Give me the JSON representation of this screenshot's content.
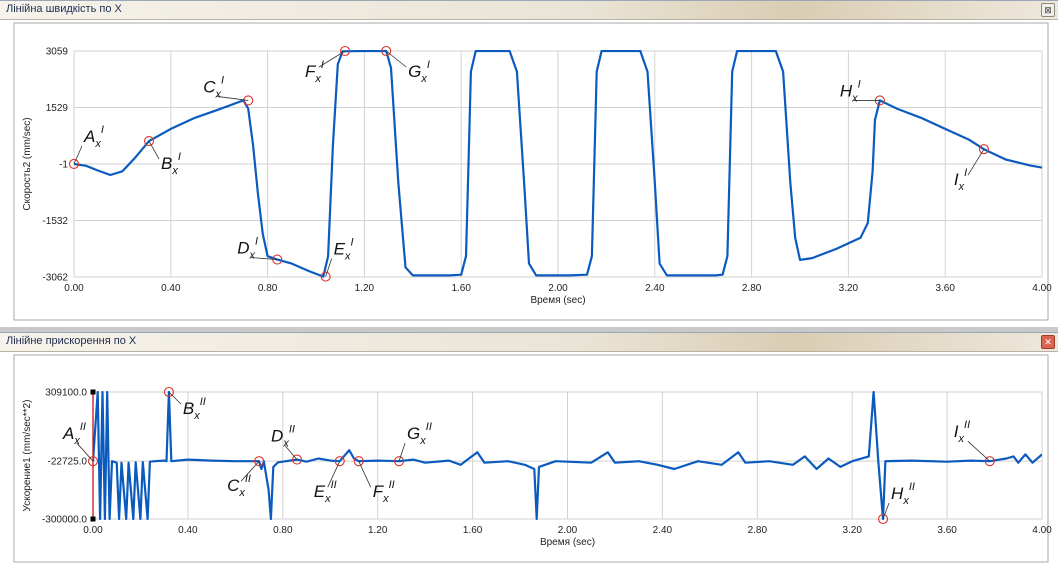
{
  "colors": {
    "series": "#0b5bbf",
    "marker": "#d9342b",
    "grid": "#d2d2d2",
    "axis_line": "#c00000",
    "title_text": "#1d2b4d"
  },
  "window_top": {
    "title": "Лінійна швидкість по X",
    "button_icon": "maximize-icon",
    "button_glyph": "⊠"
  },
  "window_bottom": {
    "title": "Лінійне прискорення по X",
    "button_icon": "close-icon",
    "button_glyph": "✕"
  },
  "chart_data": [
    {
      "type": "line",
      "title": "Лінійна швидкість по X",
      "xlabel": "Время (sec)",
      "ylabel": "Скорость2 (mm/sec)",
      "xlim": [
        0,
        4
      ],
      "ylim": [
        -3062,
        3059
      ],
      "xticks": [
        "0.00",
        "0.40",
        "0.80",
        "1.20",
        "1.60",
        "2.00",
        "2.40",
        "2.80",
        "3.20",
        "3.60",
        "4.00"
      ],
      "yticks": [
        {
          "v": 3059,
          "label": "3059"
        },
        {
          "v": 1529,
          "label": "1529"
        },
        {
          "v": -1,
          "label": "-1"
        },
        {
          "v": -1532,
          "label": "-1532"
        },
        {
          "v": -3062,
          "label": "-3062"
        }
      ],
      "grid": true,
      "series": [
        {
          "points": [
            [
              0.0,
              -1
            ],
            [
              0.05,
              -50
            ],
            [
              0.1,
              -180
            ],
            [
              0.15,
              -300
            ],
            [
              0.2,
              -200
            ],
            [
              0.25,
              150
            ],
            [
              0.31,
              620
            ],
            [
              0.4,
              950
            ],
            [
              0.5,
              1250
            ],
            [
              0.6,
              1480
            ],
            [
              0.7,
              1720
            ],
            [
              0.72,
              1500
            ],
            [
              0.74,
              500
            ],
            [
              0.76,
              -800
            ],
            [
              0.78,
              -1900
            ],
            [
              0.8,
              -2500
            ],
            [
              0.84,
              -2590
            ],
            [
              0.9,
              -2700
            ],
            [
              0.97,
              -2900
            ],
            [
              1.03,
              -3050
            ],
            [
              1.05,
              -2500
            ],
            [
              1.07,
              500
            ],
            [
              1.09,
              2700
            ],
            [
              1.11,
              3050
            ],
            [
              1.2,
              3059
            ],
            [
              1.29,
              3059
            ],
            [
              1.31,
              2600
            ],
            [
              1.34,
              -500
            ],
            [
              1.37,
              -2800
            ],
            [
              1.4,
              -3020
            ],
            [
              1.55,
              -3020
            ],
            [
              1.6,
              -3000
            ],
            [
              1.62,
              -2500
            ],
            [
              1.63,
              0
            ],
            [
              1.64,
              2500
            ],
            [
              1.66,
              3059
            ],
            [
              1.8,
              3059
            ],
            [
              1.83,
              2500
            ],
            [
              1.86,
              -500
            ],
            [
              1.88,
              -2700
            ],
            [
              1.91,
              -3020
            ],
            [
              2.05,
              -3020
            ],
            [
              2.12,
              -3000
            ],
            [
              2.14,
              -2500
            ],
            [
              2.15,
              0
            ],
            [
              2.16,
              2500
            ],
            [
              2.18,
              3059
            ],
            [
              2.34,
              3059
            ],
            [
              2.37,
              2500
            ],
            [
              2.4,
              -500
            ],
            [
              2.42,
              -2700
            ],
            [
              2.45,
              -3020
            ],
            [
              2.65,
              -3020
            ],
            [
              2.68,
              -3000
            ],
            [
              2.7,
              -2500
            ],
            [
              2.71,
              0
            ],
            [
              2.72,
              2500
            ],
            [
              2.74,
              3059
            ],
            [
              2.9,
              3059
            ],
            [
              2.93,
              2500
            ],
            [
              2.96,
              -500
            ],
            [
              2.98,
              -2000
            ],
            [
              3.0,
              -2600
            ],
            [
              3.05,
              -2550
            ],
            [
              3.15,
              -2300
            ],
            [
              3.25,
              -2000
            ],
            [
              3.28,
              -1600
            ],
            [
              3.3,
              -200
            ],
            [
              3.31,
              1200
            ],
            [
              3.33,
              1720
            ],
            [
              3.4,
              1500
            ],
            [
              3.5,
              1250
            ],
            [
              3.6,
              950
            ],
            [
              3.7,
              650
            ],
            [
              3.76,
              400
            ],
            [
              3.85,
              120
            ],
            [
              3.95,
              -40
            ],
            [
              4.0,
              -100
            ]
          ]
        }
      ],
      "annotations": [
        {
          "letter": "A",
          "x": 0.0,
          "y": -1,
          "dx": 10,
          "dy": -22
        },
        {
          "letter": "B",
          "x": 0.31,
          "y": 620,
          "dx": 12,
          "dy": 28
        },
        {
          "letter": "C",
          "x": 0.72,
          "y": 1720,
          "dx": -45,
          "dy": -8
        },
        {
          "letter": "D",
          "x": 0.84,
          "y": -2590,
          "dx": -40,
          "dy": -6
        },
        {
          "letter": "E",
          "x": 1.04,
          "y": -3050,
          "dx": 8,
          "dy": -22
        },
        {
          "letter": "F",
          "x": 1.12,
          "y": 3059,
          "dx": -40,
          "dy": 26
        },
        {
          "letter": "G",
          "x": 1.29,
          "y": 3059,
          "dx": 22,
          "dy": 26
        },
        {
          "letter": "H",
          "x": 3.33,
          "y": 1720,
          "dx": -40,
          "dy": -4
        },
        {
          "letter": "I",
          "x": 3.76,
          "y": 400,
          "dx": -30,
          "dy": 36
        }
      ],
      "annotation_sup": "I"
    },
    {
      "type": "line",
      "title": "Лінійне прискорення по X",
      "xlabel": "Время (sec)",
      "ylabel": "Ускорение1 (mm/sec**2)",
      "xlim": [
        0,
        4
      ],
      "ylim": [
        -300000,
        309100
      ],
      "xticks": [
        "0.00",
        "0.40",
        "0.80",
        "1.20",
        "1.60",
        "2.00",
        "2.40",
        "2.80",
        "3.20",
        "3.60",
        "4.00"
      ],
      "yticks": [
        {
          "v": 309100,
          "label": "309100.0"
        },
        {
          "v": -22725,
          "label": "-22725.0"
        },
        {
          "v": -300000,
          "label": "-300000.0"
        }
      ],
      "grid": true,
      "series": [
        {
          "points": [
            [
              0.0,
              -22725
            ],
            [
              0.02,
              309100
            ],
            [
              0.03,
              -300000
            ],
            [
              0.04,
              309100
            ],
            [
              0.05,
              -300000
            ],
            [
              0.06,
              309100
            ],
            [
              0.07,
              -300000
            ],
            [
              0.08,
              -22725
            ],
            [
              0.1,
              -30000
            ],
            [
              0.11,
              -300000
            ],
            [
              0.12,
              -30000
            ],
            [
              0.14,
              -300000
            ],
            [
              0.15,
              -30000
            ],
            [
              0.17,
              -300000
            ],
            [
              0.18,
              -28000
            ],
            [
              0.2,
              -300000
            ],
            [
              0.21,
              -27000
            ],
            [
              0.23,
              -300000
            ],
            [
              0.24,
              -25000
            ],
            [
              0.26,
              -22725
            ],
            [
              0.3,
              -20000
            ],
            [
              0.31,
              -22725
            ],
            [
              0.32,
              309100
            ],
            [
              0.33,
              -22725
            ],
            [
              0.4,
              -15000
            ],
            [
              0.5,
              -20000
            ],
            [
              0.6,
              -23000
            ],
            [
              0.7,
              -22725
            ],
            [
              0.71,
              -60000
            ],
            [
              0.72,
              -22725
            ],
            [
              0.74,
              -160000
            ],
            [
              0.75,
              -300000
            ],
            [
              0.76,
              -50000
            ],
            [
              0.78,
              -28000
            ],
            [
              0.86,
              -15000
            ],
            [
              0.9,
              -25000
            ],
            [
              0.95,
              -10000
            ],
            [
              1.0,
              -20000
            ],
            [
              1.04,
              -22725
            ],
            [
              1.08,
              30000
            ],
            [
              1.1,
              -10000
            ],
            [
              1.12,
              -22725
            ],
            [
              1.2,
              -20000
            ],
            [
              1.29,
              -22725
            ],
            [
              1.35,
              -15000
            ],
            [
              1.4,
              -30000
            ],
            [
              1.5,
              -20000
            ],
            [
              1.55,
              -40000
            ],
            [
              1.62,
              20000
            ],
            [
              1.65,
              -30000
            ],
            [
              1.75,
              -22725
            ],
            [
              1.82,
              -40000
            ],
            [
              1.86,
              -60000
            ],
            [
              1.87,
              -300000
            ],
            [
              1.88,
              -50000
            ],
            [
              1.95,
              -22725
            ],
            [
              2.1,
              -30000
            ],
            [
              2.17,
              20000
            ],
            [
              2.2,
              -30000
            ],
            [
              2.3,
              -22725
            ],
            [
              2.38,
              -40000
            ],
            [
              2.45,
              -60000
            ],
            [
              2.55,
              -22725
            ],
            [
              2.65,
              -40000
            ],
            [
              2.72,
              20000
            ],
            [
              2.75,
              -30000
            ],
            [
              2.85,
              -22725
            ],
            [
              2.95,
              -40000
            ],
            [
              3.0,
              0
            ],
            [
              3.05,
              -60000
            ],
            [
              3.1,
              -10000
            ],
            [
              3.15,
              -50000
            ],
            [
              3.2,
              -22725
            ],
            [
              3.27,
              0
            ],
            [
              3.29,
              309100
            ],
            [
              3.31,
              -22725
            ],
            [
              3.33,
              -300000
            ],
            [
              3.34,
              -22725
            ],
            [
              3.45,
              -20000
            ],
            [
              3.6,
              -25000
            ],
            [
              3.7,
              -20000
            ],
            [
              3.78,
              -22725
            ],
            [
              3.85,
              -10000
            ],
            [
              3.88,
              0
            ],
            [
              3.9,
              -30000
            ],
            [
              3.93,
              10000
            ],
            [
              3.96,
              -30000
            ],
            [
              4.0,
              10000
            ]
          ]
        }
      ],
      "annotations": [
        {
          "letter": "A",
          "x": 0.0,
          "y": -22725,
          "dx": -30,
          "dy": -22
        },
        {
          "letter": "B",
          "x": 0.32,
          "y": 309100,
          "dx": 14,
          "dy": 22
        },
        {
          "letter": "C",
          "x": 0.7,
          "y": -22725,
          "dx": -32,
          "dy": 30
        },
        {
          "letter": "D",
          "x": 0.86,
          "y": -15000,
          "dx": -26,
          "dy": -18
        },
        {
          "letter": "E",
          "x": 1.04,
          "y": -22725,
          "dx": -26,
          "dy": 36
        },
        {
          "letter": "F",
          "x": 1.12,
          "y": -22725,
          "dx": 14,
          "dy": 36
        },
        {
          "letter": "G",
          "x": 1.29,
          "y": -22725,
          "dx": 8,
          "dy": -22
        },
        {
          "letter": "H",
          "x": 3.33,
          "y": -300000,
          "dx": 8,
          "dy": -20
        },
        {
          "letter": "I",
          "x": 3.78,
          "y": -22725,
          "dx": -36,
          "dy": -24
        }
      ],
      "annotation_sup": "II"
    }
  ]
}
